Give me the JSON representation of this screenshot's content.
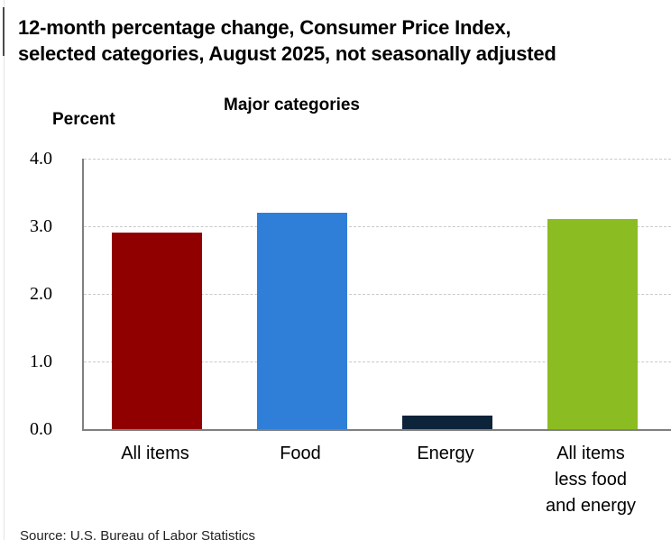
{
  "header": {
    "title_line1": "12-month percentage change, Consumer Price Index,",
    "title_line2": "selected categories, August 2025, not seasonally adjusted"
  },
  "chart_data": {
    "type": "bar",
    "title": "Major categories",
    "ylabel": "Percent",
    "categories": [
      "All items",
      "Food",
      "Energy",
      "All items less food and energy"
    ],
    "category_label_lines": [
      [
        "All items"
      ],
      [
        "Food"
      ],
      [
        "Energy"
      ],
      [
        "All items",
        "less food",
        "and energy"
      ]
    ],
    "values": [
      2.9,
      3.2,
      0.2,
      3.1
    ],
    "bar_colors": [
      "#910000",
      "#2f7ed8",
      "#0d233a",
      "#8bbc21"
    ],
    "ylim": [
      0,
      4
    ],
    "ytick_values": [
      0,
      1,
      2,
      3,
      4
    ],
    "ytick_labels": [
      "0.0",
      "1.0",
      "2.0",
      "3.0",
      "4.0"
    ],
    "grid": "horizontal-dashed",
    "legend": "none"
  },
  "footer": {
    "source": "Source: U.S. Bureau of Labor Statistics"
  },
  "colors": {
    "axis": "#7f7f7f",
    "gridline": "#c9c9c9"
  }
}
